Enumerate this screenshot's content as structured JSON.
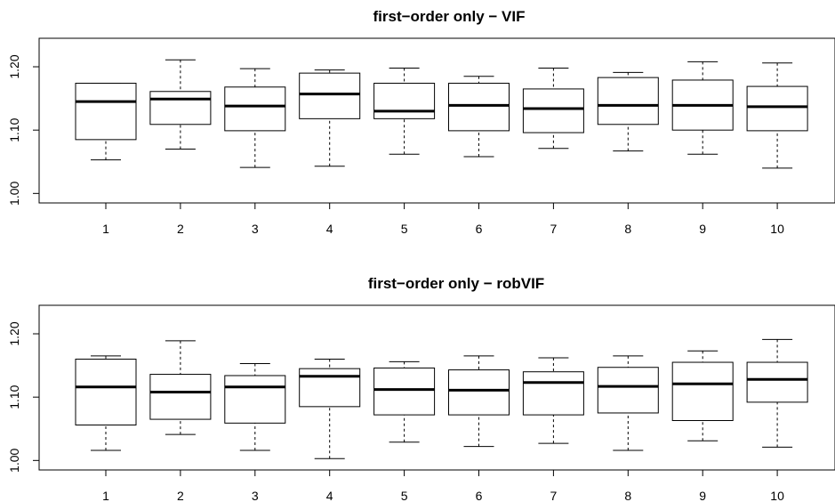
{
  "chart_data": [
    {
      "type": "boxplot",
      "title": "first−order only − VIF",
      "xlabel": "",
      "ylabel": "",
      "categories": [
        "1",
        "2",
        "3",
        "4",
        "5",
        "6",
        "7",
        "8",
        "9",
        "10"
      ],
      "ylim": [
        0.985,
        1.245
      ],
      "yticks": [
        {
          "value": 1.0,
          "label": "1.00"
        },
        {
          "value": 1.1,
          "label": "1.10"
        },
        {
          "value": 1.2,
          "label": "1.20"
        }
      ],
      "boxes": [
        {
          "min": 1.053,
          "q1": 1.085,
          "median": 1.145,
          "q3": 1.174,
          "max": 1.174
        },
        {
          "min": 1.07,
          "q1": 1.109,
          "median": 1.149,
          "q3": 1.161,
          "max": 1.211
        },
        {
          "min": 1.041,
          "q1": 1.099,
          "median": 1.138,
          "q3": 1.168,
          "max": 1.197
        },
        {
          "min": 1.043,
          "q1": 1.118,
          "median": 1.157,
          "q3": 1.19,
          "max": 1.195
        },
        {
          "min": 1.062,
          "q1": 1.118,
          "median": 1.13,
          "q3": 1.174,
          "max": 1.198
        },
        {
          "min": 1.058,
          "q1": 1.099,
          "median": 1.139,
          "q3": 1.174,
          "max": 1.185
        },
        {
          "min": 1.071,
          "q1": 1.096,
          "median": 1.134,
          "q3": 1.165,
          "max": 1.198
        },
        {
          "min": 1.067,
          "q1": 1.109,
          "median": 1.139,
          "q3": 1.183,
          "max": 1.191
        },
        {
          "min": 1.062,
          "q1": 1.1,
          "median": 1.139,
          "q3": 1.179,
          "max": 1.208
        },
        {
          "min": 1.04,
          "q1": 1.099,
          "median": 1.137,
          "q3": 1.169,
          "max": 1.206
        }
      ]
    },
    {
      "type": "boxplot",
      "title": "first−order only − robVIF",
      "xlabel": "",
      "ylabel": "",
      "categories": [
        "1",
        "2",
        "3",
        "4",
        "5",
        "6",
        "7",
        "8",
        "9",
        "10"
      ],
      "ylim": [
        0.985,
        1.245
      ],
      "yticks": [
        {
          "value": 1.0,
          "label": "1.00"
        },
        {
          "value": 1.1,
          "label": "1.10"
        },
        {
          "value": 1.2,
          "label": "1.20"
        }
      ],
      "boxes": [
        {
          "min": 1.016,
          "q1": 1.056,
          "median": 1.116,
          "q3": 1.16,
          "max": 1.165
        },
        {
          "min": 1.041,
          "q1": 1.065,
          "median": 1.108,
          "q3": 1.136,
          "max": 1.189
        },
        {
          "min": 1.016,
          "q1": 1.059,
          "median": 1.116,
          "q3": 1.134,
          "max": 1.153
        },
        {
          "min": 1.003,
          "q1": 1.085,
          "median": 1.133,
          "q3": 1.145,
          "max": 1.16
        },
        {
          "min": 1.029,
          "q1": 1.072,
          "median": 1.112,
          "q3": 1.146,
          "max": 1.156
        },
        {
          "min": 1.022,
          "q1": 1.072,
          "median": 1.111,
          "q3": 1.143,
          "max": 1.165
        },
        {
          "min": 1.027,
          "q1": 1.072,
          "median": 1.123,
          "q3": 1.14,
          "max": 1.162
        },
        {
          "min": 1.016,
          "q1": 1.075,
          "median": 1.117,
          "q3": 1.147,
          "max": 1.165
        },
        {
          "min": 1.031,
          "q1": 1.063,
          "median": 1.121,
          "q3": 1.155,
          "max": 1.173
        },
        {
          "min": 1.021,
          "q1": 1.092,
          "median": 1.128,
          "q3": 1.155,
          "max": 1.191
        }
      ]
    }
  ]
}
